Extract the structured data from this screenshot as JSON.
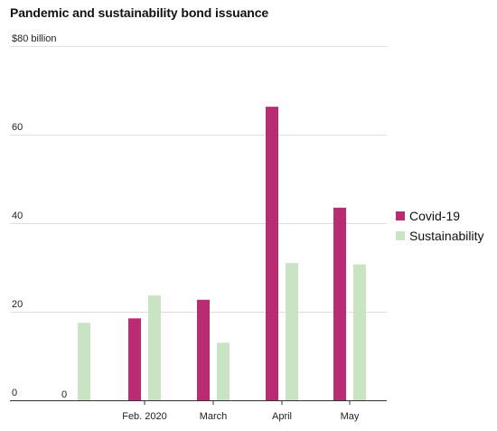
{
  "title": "Pandemic and sustainability bond issuance",
  "chart_data": {
    "type": "bar",
    "categories": [
      "",
      "Feb. 2020",
      "March",
      "April",
      "May"
    ],
    "series": [
      {
        "name": "Covid-19",
        "color": "#b92b73",
        "values": [
          0,
          18.5,
          22.7,
          66.3,
          43.5
        ]
      },
      {
        "name": "Sustainability",
        "color": "#c9e4c3",
        "values": [
          17.5,
          23.7,
          13.0,
          31.0,
          30.7
        ]
      }
    ],
    "data_labels": [
      {
        "category": "",
        "series": "Covid-19",
        "text": "0"
      }
    ],
    "yticks": [
      {
        "value": 0,
        "label": "0"
      },
      {
        "value": 20,
        "label": "20"
      },
      {
        "value": 40,
        "label": "40"
      },
      {
        "value": 60,
        "label": "60"
      },
      {
        "value": 80,
        "label": "$80 billion"
      }
    ],
    "ylim": [
      0,
      80
    ],
    "grid": true,
    "legend_position": "right"
  }
}
